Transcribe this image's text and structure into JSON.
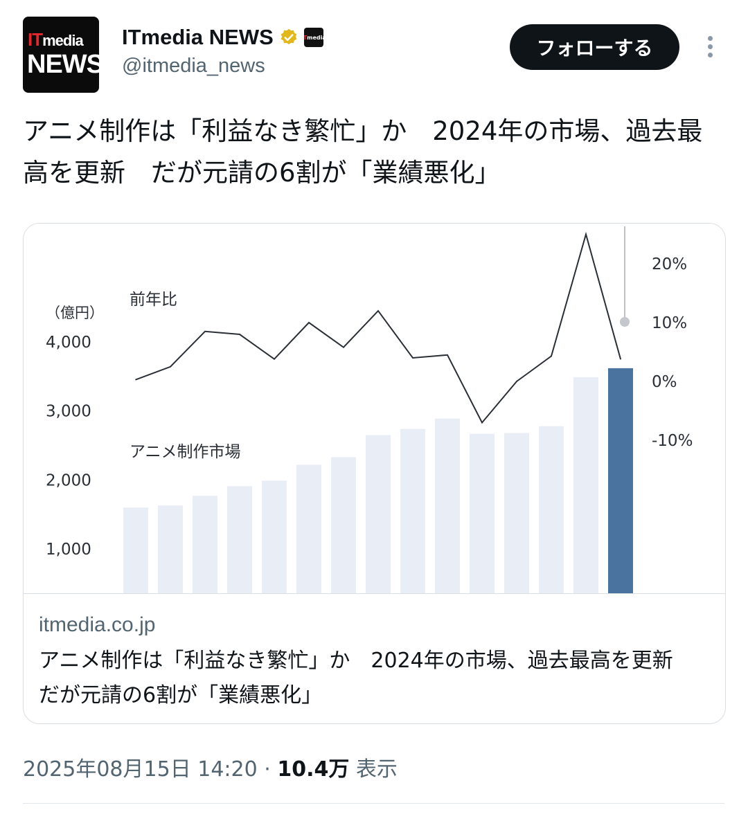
{
  "account": {
    "logo_it": "IT",
    "logo_media": "media",
    "logo_news": "NEWS",
    "badge_it": "IT",
    "badge_media": "media",
    "display_name": "ITmedia NEWS",
    "handle": "@itmedia_news",
    "verified_icon": "gold-check-badge-icon",
    "follow_label": "フォローする"
  },
  "tweet": {
    "text": "アニメ制作は「利益なき繁忙」か　2024年の市場、過去最高を更新　だが元請の6割が「業績悪化」",
    "timestamp": "2025年08月15日 14:20",
    "separator": "·",
    "views_count": "10.4万",
    "views_label": "表示"
  },
  "card": {
    "domain": "itmedia.co.jp",
    "title": "アニメ制作は「利益なき繁忙」か　2024年の市場、過去最高を更新　だが元請の6割が「業績悪化」"
  },
  "chart_data": {
    "type": "bar",
    "left_unit": "（億円）",
    "left_ticks": [
      "4,000",
      "3,000",
      "2,000",
      "1,000"
    ],
    "left_tick_values": [
      4000,
      3000,
      2000,
      1000
    ],
    "right_ticks": [
      "20%",
      "10%",
      "0%",
      "-10%"
    ],
    "right_tick_values": [
      20,
      10,
      0,
      -10
    ],
    "bar_series_label": "アニメ制作市場",
    "line_series_label": "前年比",
    "bar_values": [
      1600,
      1630,
      1770,
      1910,
      1990,
      2220,
      2330,
      2650,
      2740,
      2890,
      2670,
      2680,
      2780,
      3490,
      3620
    ],
    "line_values": [
      0.3,
      2.5,
      8.5,
      8.0,
      3.8,
      10.0,
      5.8,
      12.0,
      4.0,
      4.5,
      -7.0,
      0.0,
      4.3,
      25.0,
      3.8
    ],
    "highlight_color": "#4a73a0",
    "bar_color": "#e9edf5",
    "line_color": "#2a2f36"
  }
}
